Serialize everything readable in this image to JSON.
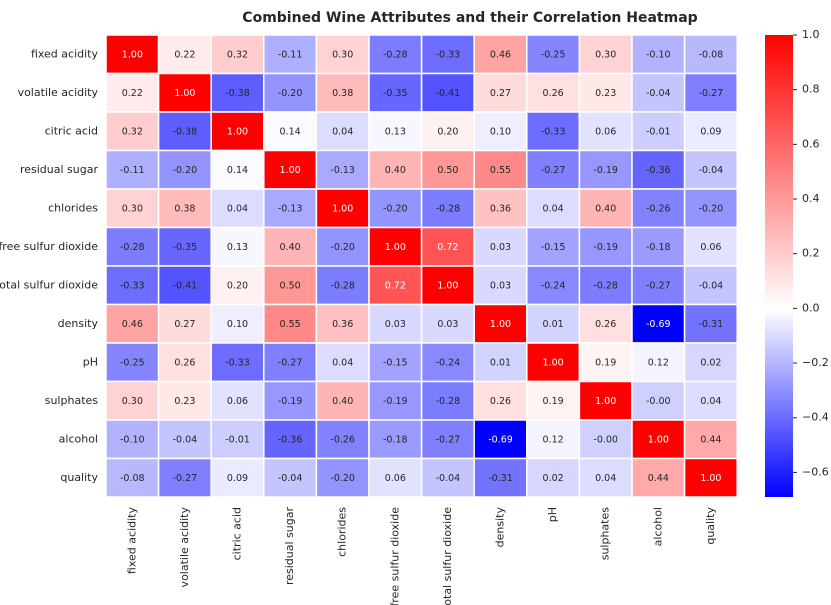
{
  "chart_data": {
    "type": "heatmap",
    "title": "Combined Wine Attributes and their Correlation Heatmap",
    "rows": [
      "fixed acidity",
      "volatile acidity",
      "citric acid",
      "residual sugar",
      "chlorides",
      "free sulfur dioxide",
      "total sulfur dioxide",
      "density",
      "pH",
      "sulphates",
      "alcohol",
      "quality"
    ],
    "columns": [
      "fixed acidity",
      "volatile acidity",
      "citric acid",
      "residual sugar",
      "chlorides",
      "free sulfur dioxide",
      "total sulfur dioxide",
      "density",
      "pH",
      "sulphates",
      "alcohol",
      "quality"
    ],
    "values": [
      [
        1.0,
        0.22,
        0.32,
        -0.11,
        0.3,
        -0.28,
        -0.33,
        0.46,
        -0.25,
        0.3,
        -0.1,
        -0.08
      ],
      [
        0.22,
        1.0,
        -0.38,
        -0.2,
        0.38,
        -0.35,
        -0.41,
        0.27,
        0.26,
        0.23,
        -0.04,
        -0.27
      ],
      [
        0.32,
        -0.38,
        1.0,
        0.14,
        0.04,
        0.13,
        0.2,
        0.1,
        -0.33,
        0.06,
        -0.01,
        0.09
      ],
      [
        -0.11,
        -0.2,
        0.14,
        1.0,
        -0.13,
        0.4,
        0.5,
        0.55,
        -0.27,
        -0.19,
        -0.36,
        -0.04
      ],
      [
        0.3,
        0.38,
        0.04,
        -0.13,
        1.0,
        -0.2,
        -0.28,
        0.36,
        0.04,
        0.4,
        -0.26,
        -0.2
      ],
      [
        -0.28,
        -0.35,
        0.13,
        0.4,
        -0.2,
        1.0,
        0.72,
        0.03,
        -0.15,
        -0.19,
        -0.18,
        0.06
      ],
      [
        -0.33,
        -0.41,
        0.2,
        0.5,
        -0.28,
        0.72,
        1.0,
        0.03,
        -0.24,
        -0.28,
        -0.27,
        -0.04
      ],
      [
        0.46,
        0.27,
        0.1,
        0.55,
        0.36,
        0.03,
        0.03,
        1.0,
        0.01,
        0.26,
        -0.69,
        -0.31
      ],
      [
        -0.25,
        0.26,
        -0.33,
        -0.27,
        0.04,
        -0.15,
        -0.24,
        0.01,
        1.0,
        0.19,
        0.12,
        0.02
      ],
      [
        0.3,
        0.23,
        0.06,
        -0.19,
        0.4,
        -0.19,
        -0.28,
        0.26,
        0.19,
        1.0,
        -0.0,
        0.04
      ],
      [
        -0.1,
        -0.04,
        -0.01,
        -0.36,
        -0.26,
        -0.18,
        -0.27,
        -0.69,
        0.12,
        -0.0,
        1.0,
        0.44
      ],
      [
        -0.08,
        -0.27,
        0.09,
        -0.04,
        -0.2,
        0.06,
        -0.04,
        -0.31,
        0.02,
        0.04,
        0.44,
        1.0
      ]
    ],
    "colormap": "bwr",
    "vmin": -0.69,
    "vmax": 1.0,
    "colorbar_ticks": [
      1.0,
      0.8,
      0.6,
      0.4,
      0.2,
      0.0,
      -0.2,
      -0.4,
      -0.6
    ],
    "colorbar_tick_labels": [
      "1.0",
      "0.8",
      "0.6",
      "0.4",
      "0.2",
      "0.0",
      "−0.2",
      "−0.4",
      "−0.6"
    ],
    "annotation_format": "0.00",
    "colors": {
      "low": "#0000ff",
      "mid": "#ffffff",
      "high": "#ff0000",
      "text_dark": "#262626",
      "text_light": "#ffffff",
      "grid_line": "#ffffff"
    }
  }
}
